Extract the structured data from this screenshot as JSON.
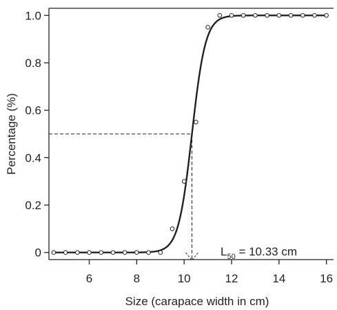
{
  "chart_data": {
    "type": "scatter",
    "xlabel": "Size (carapace width in cm)",
    "ylabel": "Percentage (%)",
    "xlim": [
      4.3,
      16.3
    ],
    "ylim": [
      -0.03,
      1.03
    ],
    "xticks": [
      6,
      8,
      10,
      12,
      14,
      16
    ],
    "xtick_labels": [
      "6",
      "8",
      "10",
      "12",
      "14",
      "16"
    ],
    "yticks": [
      0,
      0.2,
      0.4,
      0.6,
      0.8,
      1.0
    ],
    "ytick_labels": [
      "0",
      "0.2",
      "0.4",
      "0.6",
      "0.8",
      "1.0"
    ],
    "grid": false,
    "points": {
      "x": [
        4.5,
        5.0,
        5.5,
        6.0,
        6.5,
        7.0,
        7.5,
        8.0,
        8.5,
        9.0,
        9.5,
        10.0,
        10.5,
        11.0,
        11.5,
        12.0,
        12.5,
        13.0,
        13.5,
        14.0,
        14.5,
        15.0,
        15.5,
        16.0
      ],
      "y": [
        0,
        0,
        0,
        0,
        0,
        0,
        0,
        0,
        0,
        0,
        0.1,
        0.3,
        0.55,
        0.95,
        1.0,
        1.0,
        1.0,
        1.0,
        1.0,
        1.0,
        1.0,
        1.0,
        1.0,
        1.0
      ]
    },
    "fit_curve": {
      "model": "logistic",
      "l50": 10.33,
      "slope": 3.5,
      "x_range": [
        4.5,
        16.0
      ]
    },
    "reference_y": 0.5,
    "annotation": {
      "label_main": "L",
      "label_sub": "50",
      "label_value": " = 10.33 cm"
    },
    "colors": {
      "axis": "#231f20",
      "curve": "#231f20",
      "marker": "#231f20"
    }
  }
}
